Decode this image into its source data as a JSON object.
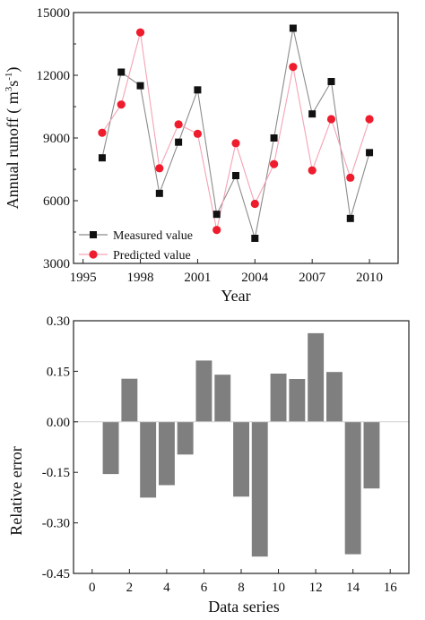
{
  "chart_data": [
    {
      "type": "line",
      "xlabel": "Year",
      "ylabel": "Annual runoff ( m3s-1)",
      "ylabel_parts": {
        "pre": "Annual runoff ( m",
        "sup1": "3",
        "mid": "s",
        "sup2": "-1",
        "post": ")"
      },
      "xlim": [
        1994.5,
        2011.5
      ],
      "ylim": [
        3000,
        15000
      ],
      "xticks": [
        1995,
        1998,
        2001,
        2004,
        2007,
        2010
      ],
      "yticks": [
        3000,
        6000,
        9000,
        12000,
        15000
      ],
      "legend": {
        "placement": "bottom-left"
      },
      "x": [
        1996,
        1997,
        1998,
        1999,
        2000,
        2001,
        2002,
        2003,
        2004,
        2005,
        2006,
        2007,
        2008,
        2009,
        2010
      ],
      "series": [
        {
          "name": "Measured value",
          "marker": "square",
          "marker_color": "#111111",
          "line_color": "#8c8c8c",
          "values": [
            8050,
            12150,
            11500,
            6350,
            8800,
            11300,
            5350,
            7200,
            4200,
            9000,
            14250,
            10150,
            11700,
            5150,
            8300
          ]
        },
        {
          "name": "Predicted value",
          "marker": "circle",
          "marker_color": "#ee1c2c",
          "line_color": "#f4a3b4",
          "values": [
            9250,
            10600,
            14050,
            7550,
            9650,
            9200,
            4600,
            8750,
            5850,
            7750,
            12400,
            7450,
            9900,
            7100,
            9900
          ]
        }
      ]
    },
    {
      "type": "bar",
      "xlabel": "Data series",
      "ylabel": "Relative error",
      "xlim": [
        -1,
        17
      ],
      "ylim": [
        -0.45,
        0.3
      ],
      "xticks": [
        0,
        2,
        4,
        6,
        8,
        10,
        12,
        14,
        16
      ],
      "yticks": [
        -0.45,
        -0.3,
        -0.15,
        0.0,
        0.15,
        0.3
      ],
      "ytick_labels": [
        "-0.45",
        "-0.30",
        "-0.15",
        "0.00",
        "0.15",
        "0.30"
      ],
      "bar_color": "#7f7f7f",
      "zero_line_color": "#d0d0d0",
      "categories": [
        1,
        2,
        3,
        4,
        5,
        6,
        7,
        8,
        9,
        10,
        11,
        12,
        13,
        14,
        15
      ],
      "values": [
        -0.155,
        0.128,
        -0.225,
        -0.188,
        -0.097,
        0.182,
        0.14,
        -0.222,
        -0.4,
        0.143,
        0.127,
        0.263,
        0.148,
        -0.393,
        -0.198
      ]
    }
  ]
}
